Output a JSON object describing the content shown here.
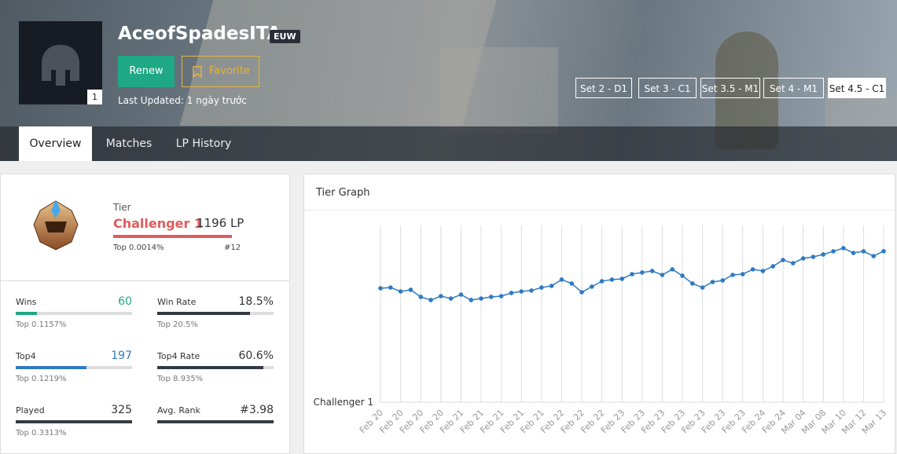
{
  "header": {
    "name": "AceofSpadesITA",
    "region": "EUW",
    "avatar_level": "1",
    "renew": "Renew",
    "favorite": "Favorite",
    "last_updated": "Last Updated: 1 ngày trước",
    "sets": [
      "Set 2 - D1",
      "Set 3 - C1",
      "Set 3.5 - M1",
      "Set 4 - M1",
      "Set 4.5 - C1"
    ]
  },
  "tabs": [
    "Overview",
    "Matches",
    "LP History"
  ],
  "tier": {
    "label": "Tier",
    "rank": "Challenger 1",
    "lp": "1196 LP",
    "top": "Top 0.0014%",
    "position": "#12"
  },
  "stats": {
    "wins": {
      "label": "Wins",
      "value": 60,
      "top": "Top 0.1157%"
    },
    "win_rate": {
      "label": "Win Rate",
      "value": {
        "value": 18.5,
        "label": "18.5%"
      },
      "top": {
        "value": 20.5,
        "label": "Top 20.5%"
      }
    },
    "top4": {
      "label": "Top4",
      "value": 197,
      "top": "Top 0.1219%"
    },
    "top4_rate": {
      "label": "Top4 Rate",
      "value": {
        "value": 60.6,
        "label": "60.6%"
      },
      "top": {
        "value": 8.935,
        "label": "Top 8.935%"
      }
    },
    "played": {
      "label": "Played",
      "value": 325,
      "top": "Top 0.3313%"
    },
    "avg_rank": {
      "label": "Avg. Rank",
      "value": "#3.98"
    }
  },
  "chart_data": {
    "type": "line",
    "title": "Tier Graph",
    "categories": [
      "Feb 20",
      null,
      "Feb 20",
      null,
      "Feb 20",
      null,
      "Feb 20",
      null,
      "Feb 21",
      null,
      "Feb 21",
      null,
      "Feb 21",
      null,
      "Feb 21",
      null,
      "Feb 21",
      null,
      "Feb 22",
      null,
      "Feb 22",
      null,
      "Feb 22",
      null,
      "Feb 23",
      null,
      "Feb 23",
      null,
      "Feb 23",
      null,
      "Feb 23",
      null,
      "Feb 23",
      null,
      "Feb 23",
      null,
      "Feb 23",
      null,
      "Feb 24",
      null,
      "Feb 24",
      null,
      "Mar 04",
      null,
      "Mar 08",
      null,
      "Mar 10",
      null,
      "Mar 12",
      null,
      "Mar 13"
    ],
    "series": [
      {
        "name": "LP",
        "color": "#2f7ac2",
        "values": [
          902,
          908,
          877,
          890,
          834,
          809,
          840,
          821,
          852,
          809,
          821,
          834,
          840,
          865,
          877,
          884,
          908,
          921,
          971,
          940,
          871,
          915,
          958,
          971,
          977,
          1014,
          1027,
          1039,
          1008,
          1052,
          1002,
          940,
          908,
          952,
          964,
          1008,
          1014,
          1052,
          1039,
          1076,
          1126,
          1101,
          1139,
          1151,
          1170,
          1195,
          1220,
          1182,
          1195,
          1157,
          1196
        ]
      }
    ],
    "ylim": [
      0,
      1400
    ],
    "yticks": [
      {
        "value": 0,
        "label": "Challenger 1"
      }
    ],
    "grid": true
  }
}
